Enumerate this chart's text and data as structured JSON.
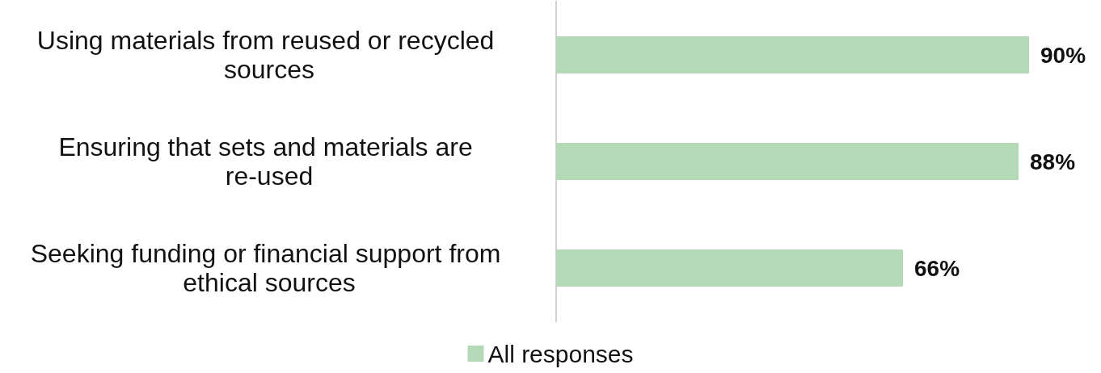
{
  "chart_data": {
    "type": "bar",
    "orientation": "horizontal",
    "categories": [
      "Using materials from reused or recycled sources",
      "Ensuring that sets and materials are re-used",
      "Seeking funding or financial support from ethical sources"
    ],
    "series": [
      {
        "name": "All responses",
        "color": "#b3d9b6",
        "values": [
          90,
          88,
          66
        ],
        "value_labels": [
          "90%",
          "88%",
          "66%"
        ]
      }
    ],
    "legend": "bottom",
    "grid": false
  }
}
